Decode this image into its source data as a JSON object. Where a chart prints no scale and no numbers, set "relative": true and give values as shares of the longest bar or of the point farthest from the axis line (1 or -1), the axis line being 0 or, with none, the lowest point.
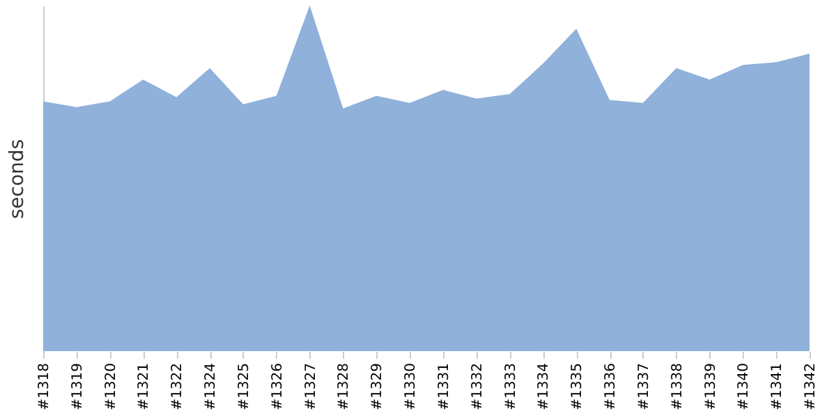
{
  "chart_data": {
    "type": "area",
    "ylabel": "seconds",
    "relative": true,
    "color": "#8fb1da",
    "categories": [
      "#1318",
      "#1319",
      "#1320",
      "#1321",
      "#1322",
      "#1324",
      "#1325",
      "#1326",
      "#1327",
      "#1328",
      "#1329",
      "#1330",
      "#1331",
      "#1332",
      "#1333",
      "#1334",
      "#1335",
      "#1336",
      "#1337",
      "#1338",
      "#1339",
      "#1340",
      "#1341",
      "#1342"
    ],
    "values": [
      0.723,
      0.706,
      0.723,
      0.786,
      0.735,
      0.819,
      0.714,
      0.739,
      1,
      0.702,
      0.739,
      0.718,
      0.756,
      0.731,
      0.744,
      0.832,
      0.933,
      0.727,
      0.718,
      0.819,
      0.786,
      0.828,
      0.836,
      0.861
    ]
  }
}
